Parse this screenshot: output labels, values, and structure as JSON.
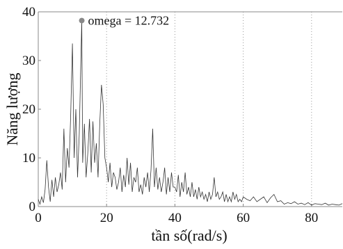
{
  "chart_data": {
    "type": "line",
    "title": "",
    "xlabel": "tần số(rad/s)",
    "ylabel": "Năng lượng",
    "xlim": [
      0,
      89
    ],
    "ylim": [
      0,
      40
    ],
    "xticks": [
      0,
      20,
      40,
      60,
      80
    ],
    "yticks": [
      0,
      10,
      20,
      30,
      40
    ],
    "xtick_labels": [
      "0",
      "20",
      "40",
      "60",
      "80"
    ],
    "ytick_labels": [
      "0",
      "10",
      "20",
      "30",
      "40"
    ],
    "grid": "vertical-dotted",
    "series": [
      {
        "color": "#333333",
        "x": [
          0.0,
          0.5,
          1.0,
          1.5,
          2.0,
          2.5,
          3.0,
          3.5,
          4.0,
          4.5,
          5.0,
          5.5,
          6.0,
          6.5,
          7.0,
          7.5,
          8.0,
          8.5,
          9.0,
          9.5,
          10.0,
          10.5,
          11.0,
          11.5,
          12.0,
          12.732,
          13.0,
          13.5,
          14.0,
          14.5,
          15.0,
          15.5,
          16.0,
          16.5,
          17.0,
          17.5,
          18.0,
          18.5,
          19.0,
          19.5,
          20.0,
          20.5,
          21.0,
          21.5,
          22.0,
          22.5,
          23.0,
          23.5,
          24.0,
          24.5,
          25.0,
          25.5,
          26.0,
          26.5,
          27.0,
          27.5,
          28.0,
          28.5,
          29.0,
          29.5,
          30.0,
          30.5,
          31.0,
          31.5,
          32.0,
          32.5,
          33.0,
          33.5,
          34.0,
          34.5,
          35.0,
          35.5,
          36.0,
          36.5,
          37.0,
          37.5,
          38.0,
          38.5,
          39.0,
          39.5,
          40.0,
          40.5,
          41.0,
          41.5,
          42.0,
          42.5,
          43.0,
          43.5,
          44.0,
          44.5,
          45.0,
          45.5,
          46.0,
          46.5,
          47.0,
          47.5,
          48.0,
          48.5,
          49.0,
          49.5,
          50.0,
          50.5,
          51.0,
          51.5,
          52.0,
          52.5,
          53.0,
          53.5,
          54.0,
          54.5,
          55.0,
          55.5,
          56.0,
          56.5,
          57.0,
          57.5,
          58.0,
          58.5,
          59.0,
          59.5,
          60.0,
          61.0,
          62.0,
          63.0,
          64.0,
          65.0,
          66.0,
          67.0,
          68.0,
          69.0,
          70.0,
          71.0,
          72.0,
          73.0,
          74.0,
          75.0,
          76.0,
          77.0,
          78.0,
          79.0,
          80.0,
          81.0,
          82.0,
          83.0,
          84.0,
          85.0,
          86.0,
          87.0,
          88.0,
          89.0
        ],
        "y": [
          1.5,
          0.5,
          2.0,
          0.8,
          3.5,
          9.5,
          4.0,
          1.0,
          5.5,
          2.0,
          6.0,
          3.0,
          4.5,
          7.0,
          3.5,
          16.0,
          5.0,
          12.0,
          8.0,
          19.0,
          33.5,
          10.0,
          20.0,
          6.0,
          15.0,
          38.2,
          9.0,
          17.0,
          6.0,
          11.0,
          18.0,
          7.0,
          17.5,
          9.0,
          13.0,
          6.0,
          17.0,
          25.0,
          21.0,
          10.0,
          8.0,
          5.0,
          9.0,
          4.0,
          7.0,
          6.0,
          3.5,
          5.0,
          8.0,
          3.0,
          6.5,
          4.0,
          10.0,
          4.5,
          9.0,
          3.0,
          6.0,
          5.0,
          8.0,
          3.0,
          4.5,
          2.5,
          6.0,
          4.0,
          7.0,
          3.0,
          7.5,
          16.0,
          4.0,
          8.0,
          3.5,
          6.0,
          3.0,
          5.0,
          8.0,
          2.5,
          6.0,
          3.0,
          7.0,
          4.0,
          4.0,
          3.0,
          6.5,
          2.0,
          5.0,
          3.0,
          7.0,
          2.5,
          4.0,
          2.0,
          5.0,
          2.0,
          3.5,
          1.5,
          4.0,
          2.0,
          3.0,
          1.5,
          2.5,
          1.0,
          3.0,
          1.5,
          2.5,
          6.0,
          2.0,
          3.0,
          1.5,
          2.0,
          3.0,
          1.0,
          2.5,
          1.0,
          2.0,
          1.0,
          3.0,
          1.5,
          2.5,
          1.0,
          1.5,
          1.0,
          2.0,
          1.5,
          1.2,
          2.0,
          1.0,
          1.5,
          2.0,
          0.8,
          1.8,
          2.5,
          1.0,
          1.2,
          0.5,
          0.8,
          0.6,
          1.0,
          0.5,
          0.7,
          0.4,
          0.8,
          0.3,
          0.6,
          0.5,
          0.4,
          0.7,
          0.3,
          0.5,
          0.4,
          0.3,
          0.6
        ]
      }
    ],
    "annotations": [
      {
        "text": "omega = 12.732",
        "x": 12.732,
        "y": 38.2,
        "marker_color": "#888888"
      }
    ]
  }
}
